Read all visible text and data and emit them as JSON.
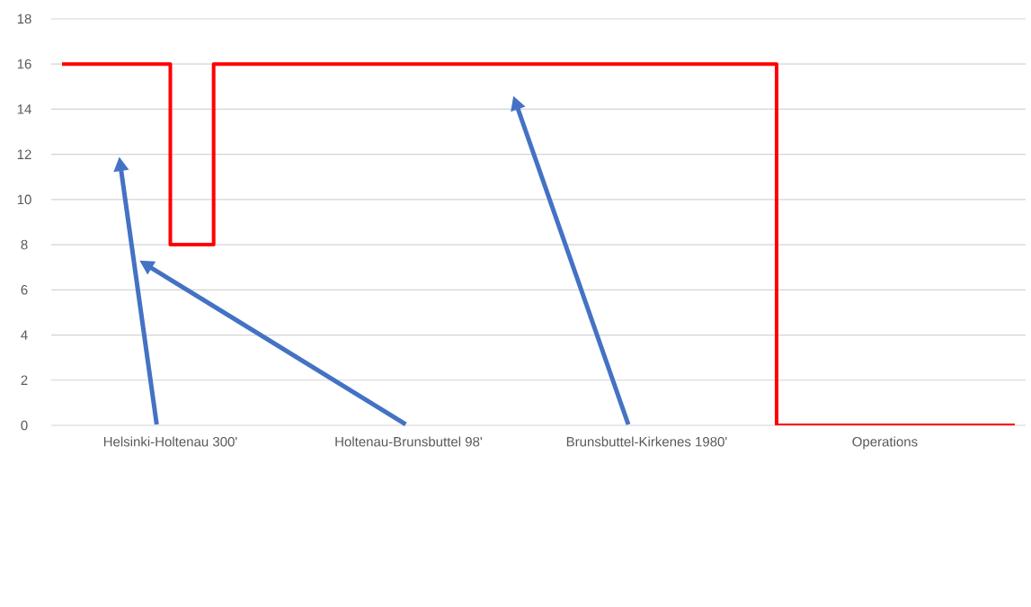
{
  "chart_data": {
    "type": "step",
    "categories": [
      null,
      null,
      null,
      null,
      null,
      "Helsinki-Holtenau 300'",
      null,
      null,
      null,
      null,
      null,
      null,
      null,
      null,
      null,
      null,
      "Holtenau-Brunsbuttel 98'",
      null,
      null,
      null,
      null,
      null,
      null,
      null,
      null,
      null,
      null,
      "Brunsbuttel-Kirkenes 1980'",
      null,
      null,
      null,
      null,
      null,
      null,
      null,
      null,
      null,
      null,
      "Operations",
      null,
      null,
      null,
      null,
      null,
      null
    ],
    "series": [
      {
        "color": "#ff0000",
        "values": [
          16,
          16,
          16,
          16,
          16,
          8,
          8,
          16,
          16,
          16,
          16,
          16,
          16,
          16,
          16,
          16,
          16,
          16,
          16,
          16,
          16,
          16,
          16,
          16,
          16,
          16,
          16,
          16,
          16,
          16,
          16,
          16,
          16,
          0,
          0,
          0,
          0,
          0,
          0,
          0,
          0,
          0,
          0,
          0,
          0
        ]
      }
    ],
    "ylim": [
      0,
      18
    ],
    "yticks": [
      0,
      2,
      4,
      6,
      8,
      10,
      12,
      14,
      16,
      18
    ],
    "grid": "y",
    "legend": false,
    "marker": "none",
    "line_style": "solid"
  }
}
